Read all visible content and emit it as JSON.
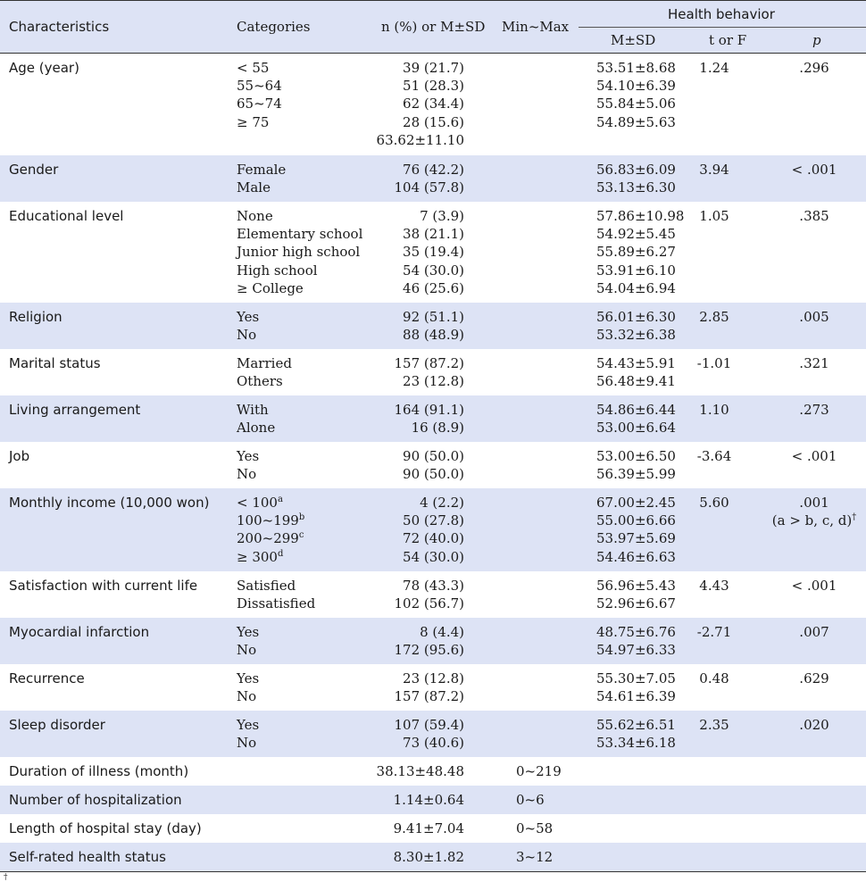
{
  "header": {
    "characteristics": "Characteristics",
    "categories": "Categories",
    "n": "n (%) or M±SD",
    "minmax": "Min~Max",
    "health": "Health behavior",
    "msd": "M±SD",
    "tf": "t or F",
    "p": "p"
  },
  "rows": [
    {
      "label": "Age (year)",
      "shade": false,
      "h": 114,
      "cats": [
        "< 55",
        "55~64",
        "65~74",
        "≥ 75",
        ""
      ],
      "n": [
        "39 (21.7)",
        "51 (28.3)",
        "62 (34.4)",
        "28 (15.6)",
        "63.62±11.10"
      ],
      "msd": [
        "53.51±8.68",
        "54.10±6.39",
        "55.84±5.06",
        "54.89±5.63"
      ],
      "t": "1.24",
      "p": [
        ".296"
      ]
    },
    {
      "label": "Gender",
      "shade": true,
      "h": 52,
      "cats": [
        "Female",
        "Male"
      ],
      "n": [
        "76 (42.2)",
        "104 (57.8)"
      ],
      "msd": [
        "56.83±6.09",
        "53.13±6.30"
      ],
      "t": "3.94",
      "p": [
        "< .001"
      ]
    },
    {
      "label": "Educational level",
      "shade": false,
      "h": 113,
      "cats": [
        "None",
        "Elementary school",
        "Junior high school",
        "High school",
        "≥ College"
      ],
      "n": [
        "7 (3.9)",
        "38 (21.1)",
        "35 (19.4)",
        "54 (30.0)",
        "46 (25.6)"
      ],
      "msd": [
        "57.86±10.98",
        "54.92±5.45",
        "55.89±6.27",
        "53.91±6.10",
        "54.04±6.94"
      ],
      "t": "1.05",
      "p": [
        ".385"
      ]
    },
    {
      "label": "Religion",
      "shade": true,
      "h": 52,
      "cats": [
        "Yes",
        "No"
      ],
      "n": [
        "92 (51.1)",
        "88 (48.9)"
      ],
      "msd": [
        "56.01±6.30",
        "53.32±6.38"
      ],
      "t": "2.85",
      "p": [
        ".005"
      ]
    },
    {
      "label": "Marital status",
      "shade": false,
      "h": 52,
      "cats": [
        "Married",
        "Others"
      ],
      "n": [
        "157 (87.2)",
        "23 (12.8)"
      ],
      "msd": [
        "54.43±5.91",
        "56.48±9.41"
      ],
      "t": "-1.01",
      "p": [
        ".321"
      ]
    },
    {
      "label": "Living arrangement",
      "shade": true,
      "h": 52,
      "cats": [
        "With",
        "Alone"
      ],
      "n": [
        "164 (91.1)",
        "16 (8.9)"
      ],
      "msd": [
        "54.86±6.44",
        "53.00±6.64"
      ],
      "t": "1.10",
      "p": [
        ".273"
      ]
    },
    {
      "label": "Job",
      "shade": false,
      "h": 52,
      "cats": [
        "Yes",
        "No"
      ],
      "n": [
        "90 (50.0)",
        "90 (50.0)"
      ],
      "msd": [
        "53.00±6.50",
        "56.39±5.99"
      ],
      "t": "-3.64",
      "p": [
        "< .001"
      ]
    },
    {
      "label": "Monthly income (10,000 won)",
      "shade": true,
      "h": 93,
      "cats": [
        "< 100",
        "100~199",
        "200~299",
        "≥ 300"
      ],
      "sups": [
        "a",
        "b",
        "c",
        "d"
      ],
      "n": [
        "4 (2.2)",
        "50 (27.8)",
        "72 (40.0)",
        "54 (30.0)"
      ],
      "msd": [
        "67.00±2.45",
        "55.00±6.66",
        "53.97±5.69",
        "54.46±6.63"
      ],
      "t": "5.60",
      "p": [
        ".001",
        "(a > b, c, d)"
      ],
      "p_sup": "†"
    },
    {
      "label": "Satisfaction with current life",
      "shade": false,
      "h": 52,
      "cats": [
        "Satisfied",
        "Dissatisfied"
      ],
      "n": [
        "78 (43.3)",
        "102 (56.7)"
      ],
      "msd": [
        "56.96±5.43",
        "52.96±6.67"
      ],
      "t": "4.43",
      "p": [
        "< .001"
      ]
    },
    {
      "label": "Myocardial infarction",
      "shade": true,
      "h": 52,
      "cats": [
        "Yes",
        "No"
      ],
      "n": [
        "8 (4.4)",
        "172 (95.6)"
      ],
      "msd": [
        "48.75±6.76",
        "54.97±6.33"
      ],
      "t": "-2.71",
      "p": [
        ".007"
      ]
    },
    {
      "label": "Recurrence",
      "shade": false,
      "h": 52,
      "cats": [
        "Yes",
        "No"
      ],
      "n": [
        "23 (12.8)",
        "157 (87.2)"
      ],
      "msd": [
        "55.30±7.05",
        "54.61±6.39"
      ],
      "t": "0.48",
      "p": [
        ".629"
      ]
    },
    {
      "label": "Sleep disorder",
      "shade": true,
      "h": 52,
      "cats": [
        "Yes",
        "No"
      ],
      "n": [
        "107 (59.4)",
        "73 (40.6)"
      ],
      "msd": [
        "55.62±6.51",
        "53.34±6.18"
      ],
      "t": "2.35",
      "p": [
        ".020"
      ]
    },
    {
      "label": "Duration of illness (month)",
      "shade": false,
      "h": 32,
      "cats": [],
      "n": [
        "38.13±48.48"
      ],
      "min": "0~219",
      "msd": [],
      "t": "",
      "p": []
    },
    {
      "label": "Number of hospitalization",
      "shade": true,
      "h": 32,
      "cats": [],
      "n": [
        "1.14±0.64"
      ],
      "min": "0~6",
      "msd": [],
      "t": "",
      "p": []
    },
    {
      "label": "Length of hospital stay (day)",
      "shade": false,
      "h": 32,
      "cats": [],
      "n": [
        "9.41±7.04"
      ],
      "min": "0~58",
      "msd": [],
      "t": "",
      "p": []
    },
    {
      "label": "Self-rated health status",
      "shade": true,
      "h": 32,
      "cats": [],
      "n": [
        "8.30±1.82"
      ],
      "min": "3~12",
      "msd": [],
      "t": "",
      "p": []
    }
  ],
  "footnote_mark": "†"
}
